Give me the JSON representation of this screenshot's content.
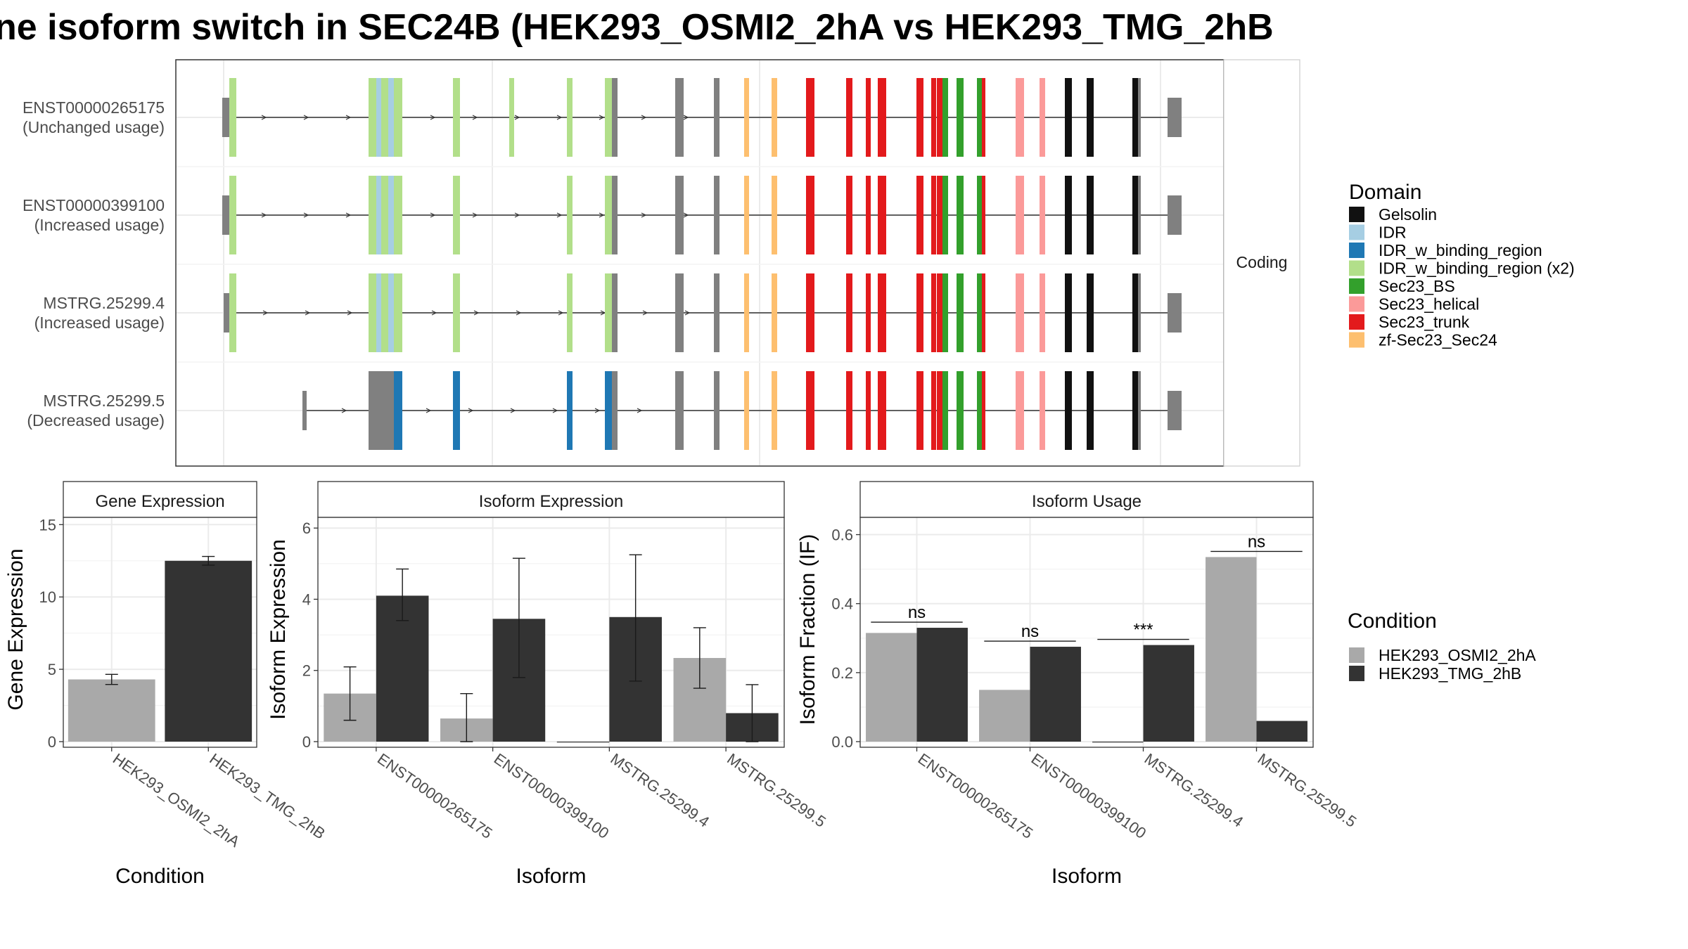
{
  "title": "ne isoform switch in SEC24B (HEK293_OSMI2_2hA vs HEK293_TMG_2hB",
  "colors": {
    "exon": "#808080",
    "condA": "#a9a9a9",
    "condB": "#333333"
  },
  "transcript_panel": {
    "facet_label": "Coding",
    "transcripts": [
      {
        "id": "ENST00000265175",
        "usage": "(Unchanged usage)"
      },
      {
        "id": "ENST00000399100",
        "usage": "(Increased usage)"
      },
      {
        "id": "MSTRG.25299.4",
        "usage": "(Increased usage)"
      },
      {
        "id": "MSTRG.25299.5",
        "usage": "(Decreased usage)"
      }
    ]
  },
  "domain_legend": {
    "title": "Domain",
    "entries": [
      {
        "label": "Gelsolin",
        "color": "#111111"
      },
      {
        "label": "IDR",
        "color": "#a6cee3"
      },
      {
        "label": "IDR_w_binding_region",
        "color": "#1f78b4"
      },
      {
        "label": "IDR_w_binding_region (x2)",
        "color": "#b2df8a"
      },
      {
        "label": "Sec23_BS",
        "color": "#33a02c"
      },
      {
        "label": "Sec23_helical",
        "color": "#fb9a99"
      },
      {
        "label": "Sec23_trunk",
        "color": "#e31a1c"
      },
      {
        "label": "zf-Sec23_Sec24",
        "color": "#fdbf6f"
      }
    ]
  },
  "condition_legend": {
    "title": "Condition",
    "entries": [
      {
        "label": "HEK293_OSMI2_2hA",
        "color": "#a9a9a9"
      },
      {
        "label": "HEK293_TMG_2hB",
        "color": "#333333"
      }
    ]
  },
  "chart_data": [
    {
      "type": "bar",
      "title": "Gene Expression",
      "xlabel": "Condition",
      "ylabel": "Gene Expression",
      "ylim": [
        0,
        15.5
      ],
      "yticks": [
        0,
        5,
        10,
        15
      ],
      "categories": [
        "HEK293_OSMI2_2hA",
        "HEK293_TMG_2hB"
      ],
      "values": [
        4.3,
        12.5
      ],
      "errors": [
        [
          3.95,
          4.65
        ],
        [
          12.2,
          12.8
        ]
      ],
      "grid": true
    },
    {
      "type": "bar",
      "title": "Isoform Expression",
      "xlabel": "Isoform",
      "ylabel": "Isoform Expression",
      "ylim": [
        0,
        6.3
      ],
      "yticks": [
        0,
        2,
        4,
        6
      ],
      "categories": [
        "ENST00000265175",
        "ENST00000399100",
        "MSTRG.25299.4",
        "MSTRG.25299.5"
      ],
      "series": [
        {
          "name": "HEK293_OSMI2_2hA",
          "values": [
            1.35,
            0.65,
            0.0,
            2.35
          ],
          "errors": [
            [
              0.6,
              2.1
            ],
            [
              0.0,
              1.35
            ],
            [
              0.0,
              0.0
            ],
            [
              1.5,
              3.2
            ]
          ]
        },
        {
          "name": "HEK293_TMG_2hB",
          "values": [
            4.1,
            3.45,
            3.5,
            0.8
          ],
          "errors": [
            [
              3.4,
              4.85
            ],
            [
              1.8,
              5.15
            ],
            [
              1.7,
              5.25
            ],
            [
              0.0,
              1.6
            ]
          ]
        }
      ],
      "grid": true
    },
    {
      "type": "bar",
      "title": "Isoform Usage",
      "xlabel": "Isoform",
      "ylabel": "Isoform Fraction (IF)",
      "ylim": [
        0,
        0.65
      ],
      "yticks": [
        0.0,
        0.2,
        0.4,
        0.6
      ],
      "yticklabels": [
        "0.0",
        "0.2",
        "0.4",
        "0.6"
      ],
      "categories": [
        "ENST00000265175",
        "ENST00000399100",
        "MSTRG.25299.4",
        "MSTRG.25299.5"
      ],
      "series": [
        {
          "name": "HEK293_OSMI2_2hA",
          "values": [
            0.315,
            0.15,
            0.0,
            0.535
          ]
        },
        {
          "name": "HEK293_TMG_2hB",
          "values": [
            0.33,
            0.275,
            0.28,
            0.06
          ]
        }
      ],
      "significance": [
        "ns",
        "ns",
        "***",
        "ns"
      ],
      "grid": true
    }
  ]
}
